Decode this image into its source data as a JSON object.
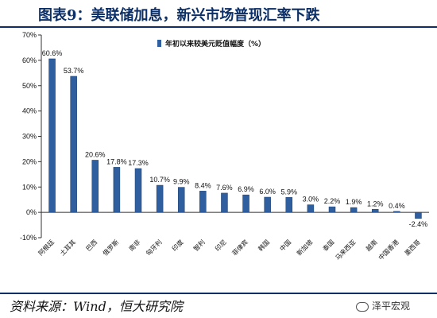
{
  "title": "图表9：美联储加息，新兴市场普现汇率下跌",
  "source": "资料来源：Wind，恒大研究院",
  "watermark": "泽平宏观",
  "colors": {
    "bar": "#2f5f9e",
    "bar_edge": "#1e3f6e",
    "title": "#0b2f66"
  },
  "chart_data": {
    "type": "bar",
    "legend": "年初以来较美元贬值幅度（%）",
    "categories": [
      "阿根廷",
      "土耳其",
      "巴西",
      "俄罗斯",
      "南非",
      "匈牙利",
      "印度",
      "智利",
      "印尼",
      "菲律宾",
      "韩国",
      "中国",
      "新加坡",
      "泰国",
      "马来西亚",
      "越南",
      "中国香港",
      "墨西哥"
    ],
    "values": [
      60.6,
      53.7,
      20.6,
      17.8,
      17.3,
      10.7,
      9.9,
      8.4,
      7.6,
      6.9,
      6.0,
      5.9,
      3.0,
      2.2,
      1.9,
      1.2,
      0.4,
      -2.4
    ],
    "value_labels": [
      "60.6%",
      "53.7%",
      "20.6%",
      "17.8%",
      "17.3%",
      "10.7%",
      "9.9%",
      "8.4%",
      "7.6%",
      "6.9%",
      "6.0%",
      "5.9%",
      "3.0%",
      "2.2%",
      "1.9%",
      "1.2%",
      "0.4%",
      "-2.4%"
    ],
    "yticks": [
      -10,
      0,
      10,
      20,
      30,
      40,
      50,
      60,
      70
    ],
    "ytick_labels": [
      "-10%",
      "0%",
      "10%",
      "20%",
      "30%",
      "40%",
      "50%",
      "60%",
      "70%"
    ],
    "ylim": [
      -10,
      70
    ],
    "grid": false,
    "legend_position": "top-center"
  }
}
